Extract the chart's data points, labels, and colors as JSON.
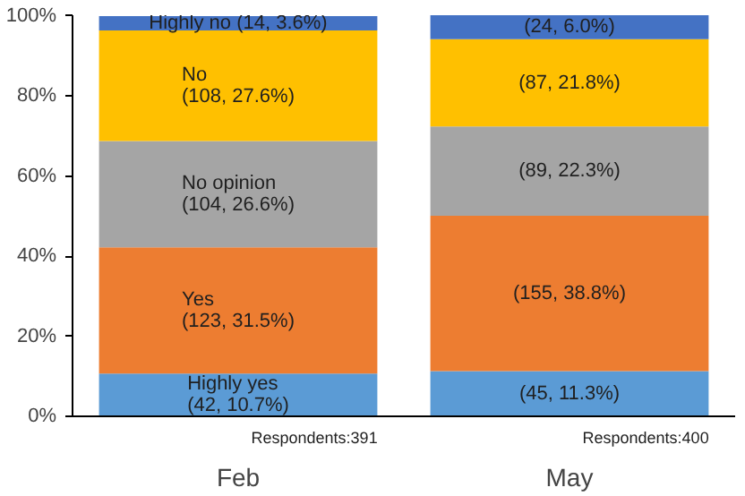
{
  "chart_data": {
    "type": "bar",
    "stacked": true,
    "categories": [
      "Feb",
      "May"
    ],
    "series": [
      {
        "color": "#5b9bd5",
        "values": [
          10.7,
          11.3
        ],
        "value_labels": [
          "Highly yes\n(42, 10.7%)",
          "(45, 11.3%)"
        ]
      },
      {
        "color": "#ed7d31",
        "values": [
          31.5,
          38.8
        ],
        "value_labels": [
          "Yes\n(123, 31.5%)",
          "(155, 38.8%)"
        ]
      },
      {
        "color": "#a5a5a5",
        "values": [
          26.6,
          22.3
        ],
        "value_labels": [
          "No opinion\n(104, 26.6%)",
          "(89, 22.3%)"
        ]
      },
      {
        "color": "#ffc000",
        "values": [
          27.6,
          21.8
        ],
        "value_labels": [
          "No\n(108, 27.6%)",
          "(87, 21.8%)"
        ]
      },
      {
        "color": "#4472c4",
        "values": [
          3.6,
          6.0
        ],
        "value_labels": [
          "Highly no (14, 3.6%)",
          "(24, 6.0%)"
        ]
      }
    ],
    "ylim": [
      0,
      100.2
    ],
    "yticks": [
      {
        "value": 0,
        "label": "0%"
      },
      {
        "value": 20,
        "label": "20%"
      },
      {
        "value": 40,
        "label": "40%"
      },
      {
        "value": 60,
        "label": "60%"
      },
      {
        "value": 80,
        "label": "80%"
      },
      {
        "value": 100,
        "label": "100%"
      }
    ],
    "annotations": [
      "Respondents:391",
      "Respondents:400"
    ],
    "grid": false
  }
}
